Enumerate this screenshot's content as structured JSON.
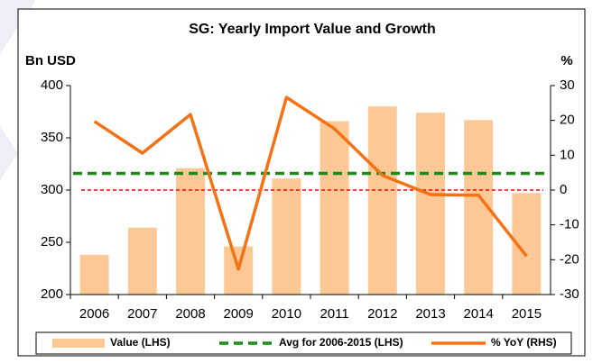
{
  "chart_data": {
    "type": "bar",
    "title": "SG: Yearly Import Value and Growth",
    "y_label": "Bn USD",
    "y2_label": "%",
    "categories": [
      "2006",
      "2007",
      "2008",
      "2009",
      "2010",
      "2011",
      "2012",
      "2013",
      "2014",
      "2015"
    ],
    "series": [
      {
        "name": "Value (LHS)",
        "type": "bar",
        "color": "#fcc896",
        "values": [
          238,
          264,
          321,
          246,
          311,
          366,
          380,
          374,
          367,
          297
        ]
      },
      {
        "name": "% YoY (RHS)",
        "type": "line",
        "axis": "y2",
        "color": "#f57214",
        "values": [
          19.7,
          10.6,
          21.7,
          -22.7,
          26.6,
          17.6,
          4.2,
          -1.3,
          -1.5,
          -19.0
        ]
      }
    ],
    "average_line": {
      "name": "Avg for 2006-2015 (LHS)",
      "value": 316,
      "color": "#1a8c1a"
    },
    "y2_reference_line": {
      "value": 0,
      "color": "#ff0000"
    },
    "ylim": [
      200,
      400
    ],
    "yticks": [
      200,
      250,
      300,
      350,
      400
    ],
    "y2lim": [
      -30,
      30
    ],
    "y2ticks": [
      -30,
      -20,
      -10,
      0,
      10,
      20,
      30
    ],
    "legend": "bottom"
  }
}
